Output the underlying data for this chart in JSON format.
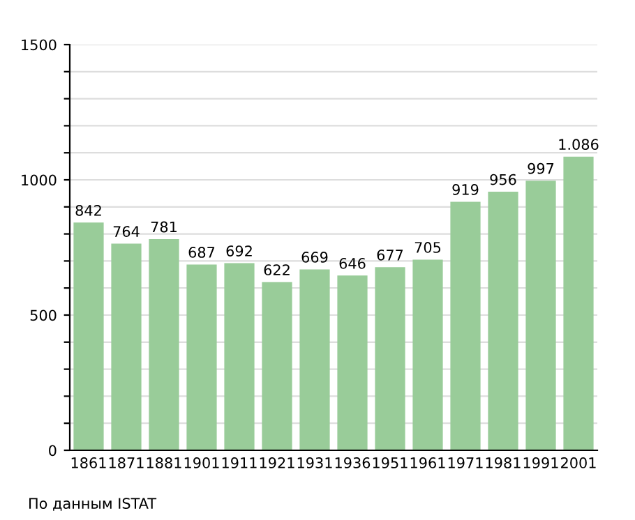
{
  "chart_data": {
    "type": "bar",
    "categories": [
      "1861",
      "1871",
      "1881",
      "1901",
      "1911",
      "1921",
      "1931",
      "1936",
      "1951",
      "1961",
      "1971",
      "1981",
      "1991",
      "2001"
    ],
    "values": [
      842,
      764,
      781,
      687,
      692,
      622,
      669,
      646,
      677,
      705,
      919,
      956,
      997,
      1086
    ],
    "value_labels": [
      "842",
      "764",
      "781",
      "687",
      "692",
      "622",
      "669",
      "646",
      "677",
      "705",
      "919",
      "956",
      "997",
      "1.086"
    ],
    "color": "#99cc99",
    "ylim": [
      0,
      1500
    ],
    "yticks": [
      0,
      {
        "value": 100,
        "label": null
      },
      {
        "value": 200,
        "label": null
      },
      {
        "value": 300,
        "label": null
      },
      {
        "value": 400,
        "label": null
      },
      500,
      {
        "value": 600,
        "label": null
      },
      {
        "value": 700,
        "label": null
      },
      {
        "value": 800,
        "label": null
      },
      {
        "value": 900,
        "label": null
      },
      1000,
      {
        "value": 1100,
        "label": null
      },
      {
        "value": 1200,
        "label": null
      },
      {
        "value": 1300,
        "label": null
      },
      {
        "value": 1400,
        "label": null
      },
      1500
    ],
    "grid": "y",
    "annotations": [
      "По данным ISTAT"
    ]
  }
}
